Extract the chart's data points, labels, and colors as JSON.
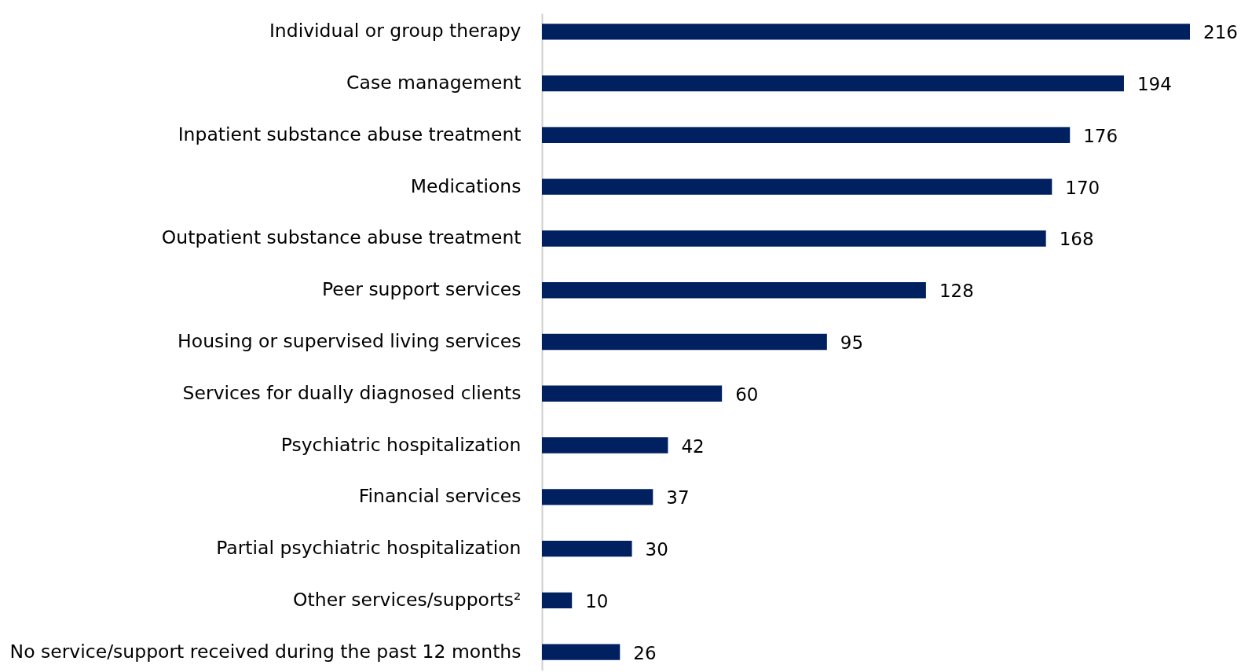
{
  "chart_data": {
    "type": "bar",
    "orientation": "horizontal",
    "categories": [
      "Individual or group therapy",
      "Case management",
      "Inpatient substance abuse treatment",
      "Medications",
      "Outpatient substance abuse treatment",
      "Peer support services",
      "Housing or supervised living services",
      "Services for dually diagnosed clients",
      "Psychiatric hospitalization",
      "Financial services",
      "Partial psychiatric hospitalization",
      "Other services/supports²",
      "No service/support received during the past 12 months"
    ],
    "values": [
      216,
      194,
      176,
      170,
      168,
      128,
      95,
      60,
      42,
      37,
      30,
      10,
      26
    ],
    "color": "#002060",
    "xlim": [
      0,
      216
    ],
    "data_labels": true,
    "tick_labels": "y",
    "grid": false
  }
}
